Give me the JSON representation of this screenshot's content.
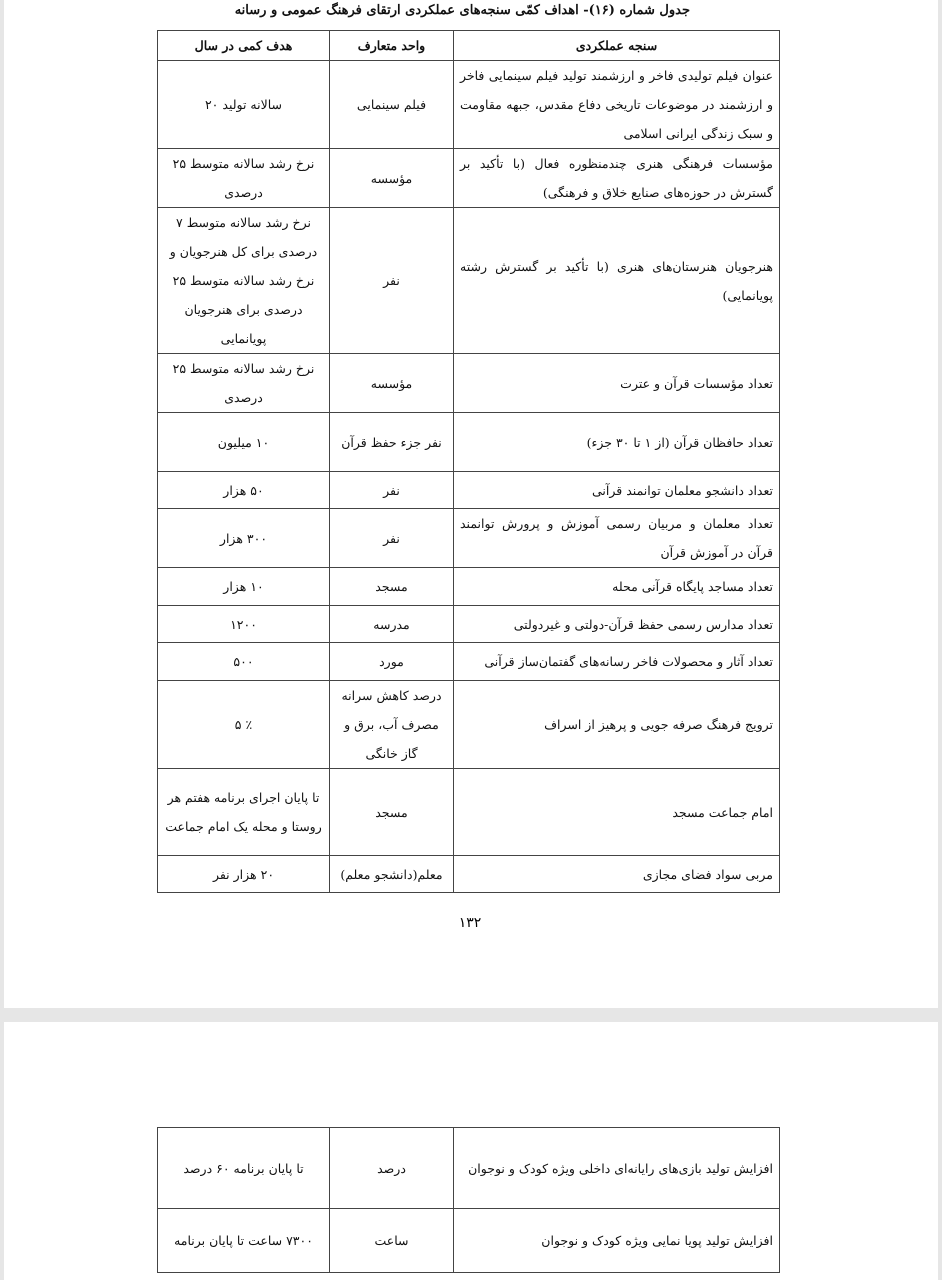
{
  "header": {
    "title": "جدول شماره (۱۶)- اهداف کمّی سنجه‌های عملکردی ارتقای فرهنگ عمومی و رسانه"
  },
  "table": {
    "columns": [
      "سنجه عملکردی",
      "واحد متعارف",
      "هدف کمی در سال"
    ],
    "rows": [
      [
        "عنوان فیلم تولیدی فاخر و ارزشمند تولید فیلم سینمایی فاخر و ارزشمند در موضوعات تاریخی دفاع مقدس، جبهه مقاومت و سبک زندگی ایرانی اسلامی",
        "فیلم سینمایی",
        "سالانه تولید ۲۰"
      ],
      [
        "مؤسسات فرهنگی هنری چندمنظوره فعال (با تأکید بر گسترش در حوزه‌های صنایع خلاق و فرهنگی)",
        "مؤسسه",
        "نرخ رشد سالانه متوسط ۲۵ درصدی"
      ],
      [
        "هنرجویان هنرستان‌های هنری (با تأکید بر گسترش رشته پویانمایی)",
        "نفر",
        "نرخ رشد سالانه متوسط ۷ درصدی برای کل هنرجویان و نرخ رشد سالانه متوسط ۲۵ درصدی برای هنرجویان پویانمایی"
      ],
      [
        "تعداد مؤسسات قرآن و عترت",
        "مؤسسه",
        "نرخ رشد سالانه متوسط ۲۵ درصدی"
      ],
      [
        "تعداد حافظان قرآن (از ۱ تا ۳۰ جزء)",
        "نفر جزء حفظ قرآن",
        "۱۰ میلیون"
      ],
      [
        "تعداد دانشجو معلمان توانمند قرآنی",
        "نفر",
        "۵۰ هزار"
      ],
      [
        "تعداد معلمان و مربیان رسمی آموزش و پرورش توانمند قرآن در آموزش قرآن",
        "نفر",
        "۳۰۰ هزار"
      ],
      [
        "تعداد مساجد پایگاه قرآنی محله",
        "مسجد",
        "۱۰ هزار"
      ],
      [
        "تعداد مدارس رسمی حفظ قرآن-دولتی و غیردولتی",
        "مدرسه",
        "۱۲۰۰"
      ],
      [
        "تعداد آثار و محصولات فاخر رسانه‌های گفتمان‌ساز قرآنی",
        "مورد",
        "۵۰۰"
      ],
      [
        "ترویج فرهنگ صرفه جویی و پرهیز از اسراف",
        "درصد کاهش سرانه مصرف آب، برق و گاز خانگی",
        "٪ ۵"
      ],
      [
        "امام جماعت مسجد",
        "مسجد",
        "تا پایان اجرای برنامه هفتم هر روستا و محله یک امام جماعت"
      ],
      [
        "مربی سواد فضای مجازی",
        "معلم(دانشجو معلم)",
        "۲۰ هزار نفر"
      ]
    ]
  },
  "page_number": "۱۳۲",
  "table2": {
    "rows": [
      [
        "افزایش تولید بازی‌های رایانه‌ای داخلی ویژه کودک و نوجوان",
        "درصد",
        "تا پایان برنامه ۶۰ درصد"
      ],
      [
        "افزایش تولید پویا نمایی ویژه کودک و نوجوان",
        "ساعت",
        "۷۳۰۰ ساعت تا پایان برنامه"
      ]
    ]
  }
}
